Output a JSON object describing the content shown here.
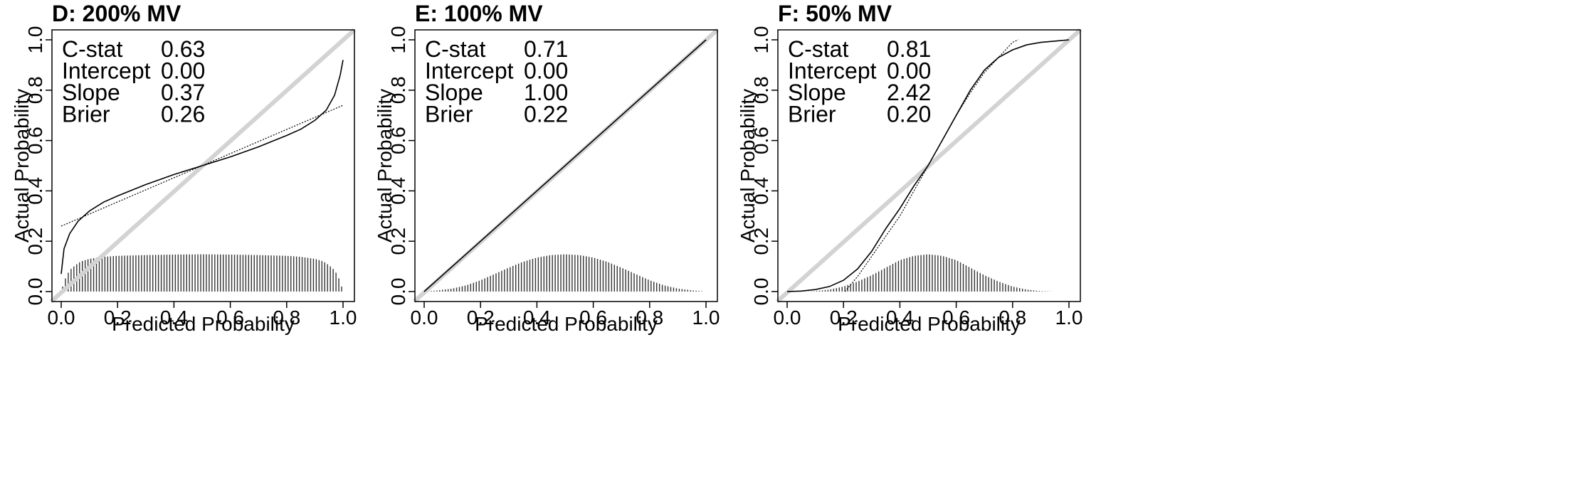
{
  "chart_data": [
    {
      "type": "line",
      "title": "D:  200% MV",
      "xlabel": "Predicted Probability",
      "ylabel": "Actual Probability",
      "xlim": [
        0,
        1
      ],
      "ylim": [
        0,
        1
      ],
      "xticks": [
        "0.0",
        "0.2",
        "0.4",
        "0.6",
        "0.8",
        "1.0"
      ],
      "yticks": [
        "0.0",
        "0.2",
        "0.4",
        "0.6",
        "0.8",
        "1.0"
      ],
      "stats": [
        {
          "label": "C-stat",
          "value": "0.63"
        },
        {
          "label": "Intercept",
          "value": "0.00"
        },
        {
          "label": "Slope",
          "value": "0.37"
        },
        {
          "label": "Brier",
          "value": "0.26"
        }
      ],
      "curve": {
        "x": [
          0.0,
          0.01,
          0.03,
          0.06,
          0.1,
          0.15,
          0.2,
          0.3,
          0.4,
          0.5,
          0.6,
          0.7,
          0.8,
          0.85,
          0.9,
          0.94,
          0.97,
          0.99,
          1.0
        ],
        "y": [
          0.07,
          0.17,
          0.23,
          0.28,
          0.32,
          0.355,
          0.38,
          0.425,
          0.465,
          0.5,
          0.535,
          0.575,
          0.62,
          0.645,
          0.68,
          0.72,
          0.78,
          0.86,
          0.92
        ]
      },
      "logistic_fit": {
        "x": [
          0.0,
          1.0
        ],
        "y": [
          0.26,
          0.74
        ]
      },
      "histogram": {
        "x": [
          0.0,
          0.005,
          0.01,
          0.02,
          0.03,
          0.05,
          0.07,
          0.1,
          0.15,
          0.2,
          0.3,
          0.4,
          0.5,
          0.6,
          0.7,
          0.8,
          0.85,
          0.9,
          0.93,
          0.95,
          0.97,
          0.98,
          0.99,
          1.0
        ],
        "y": [
          0.0,
          0.02,
          0.04,
          0.065,
          0.085,
          0.105,
          0.12,
          0.13,
          0.138,
          0.142,
          0.145,
          0.147,
          0.148,
          0.147,
          0.145,
          0.142,
          0.138,
          0.13,
          0.12,
          0.105,
          0.085,
          0.065,
          0.04,
          0.0
        ]
      }
    },
    {
      "type": "line",
      "title": "E:  100% MV",
      "xlabel": "Predicted Probability",
      "ylabel": "Actual Probability",
      "xlim": [
        0,
        1
      ],
      "ylim": [
        0,
        1
      ],
      "xticks": [
        "0.0",
        "0.2",
        "0.4",
        "0.6",
        "0.8",
        "1.0"
      ],
      "yticks": [
        "0.0",
        "0.2",
        "0.4",
        "0.6",
        "0.8",
        "1.0"
      ],
      "stats": [
        {
          "label": "C-stat",
          "value": "0.71"
        },
        {
          "label": "Intercept",
          "value": "0.00"
        },
        {
          "label": "Slope",
          "value": "1.00"
        },
        {
          "label": "Brier",
          "value": "0.22"
        }
      ],
      "curve": {
        "x": [
          0.0,
          1.0
        ],
        "y": [
          0.0,
          1.0
        ]
      },
      "logistic_fit": {
        "x": [
          0.0,
          1.0
        ],
        "y": [
          0.0,
          1.0
        ]
      },
      "histogram": {
        "x": [
          0.0,
          0.05,
          0.1,
          0.15,
          0.2,
          0.25,
          0.3,
          0.35,
          0.4,
          0.45,
          0.5,
          0.55,
          0.6,
          0.65,
          0.7,
          0.75,
          0.8,
          0.85,
          0.9,
          0.95,
          1.0
        ],
        "y": [
          0.0,
          0.005,
          0.012,
          0.025,
          0.045,
          0.07,
          0.095,
          0.118,
          0.135,
          0.145,
          0.148,
          0.145,
          0.135,
          0.118,
          0.095,
          0.07,
          0.045,
          0.025,
          0.012,
          0.005,
          0.0
        ]
      }
    },
    {
      "type": "line",
      "title": "F:  50% MV",
      "xlabel": "Predicted Probability",
      "ylabel": "Actual Probability",
      "xlim": [
        0,
        1
      ],
      "ylim": [
        0,
        1
      ],
      "xticks": [
        "0.0",
        "0.2",
        "0.4",
        "0.6",
        "0.8",
        "1.0"
      ],
      "yticks": [
        "0.0",
        "0.2",
        "0.4",
        "0.6",
        "0.8",
        "1.0"
      ],
      "stats": [
        {
          "label": "C-stat",
          "value": "0.81"
        },
        {
          "label": "Intercept",
          "value": "0.00"
        },
        {
          "label": "Slope",
          "value": "2.42"
        },
        {
          "label": "Brier",
          "value": "0.20"
        }
      ],
      "curve": {
        "x": [
          0.0,
          0.05,
          0.1,
          0.15,
          0.2,
          0.25,
          0.3,
          0.35,
          0.4,
          0.45,
          0.5,
          0.55,
          0.6,
          0.65,
          0.7,
          0.75,
          0.8,
          0.85,
          0.9,
          0.95,
          1.0
        ],
        "y": [
          0.0,
          0.002,
          0.008,
          0.02,
          0.045,
          0.09,
          0.16,
          0.25,
          0.33,
          0.42,
          0.5,
          0.6,
          0.7,
          0.8,
          0.88,
          0.93,
          0.96,
          0.98,
          0.99,
          0.995,
          1.0
        ]
      },
      "logistic_fit": {
        "x": [
          0.205,
          0.25,
          0.3,
          0.35,
          0.4,
          0.45,
          0.5,
          0.55,
          0.6,
          0.65,
          0.7,
          0.75,
          0.8,
          0.82
        ],
        "y": [
          0.0,
          0.06,
          0.14,
          0.22,
          0.3,
          0.4,
          0.5,
          0.6,
          0.7,
          0.79,
          0.87,
          0.93,
          0.99,
          1.0
        ]
      },
      "histogram": {
        "x": [
          0.0,
          0.05,
          0.1,
          0.15,
          0.2,
          0.25,
          0.3,
          0.35,
          0.4,
          0.45,
          0.5,
          0.55,
          0.6,
          0.65,
          0.7,
          0.75,
          0.8,
          0.85,
          0.9,
          0.95
        ],
        "y": [
          0.0,
          0.0,
          0.002,
          0.008,
          0.02,
          0.04,
          0.065,
          0.095,
          0.125,
          0.142,
          0.148,
          0.142,
          0.125,
          0.095,
          0.065,
          0.04,
          0.02,
          0.008,
          0.002,
          0.0
        ]
      }
    }
  ],
  "colors": {
    "reference_line": "#d3d3d3",
    "curve": "#000000",
    "histogram": "#333333",
    "frame": "#000000"
  }
}
